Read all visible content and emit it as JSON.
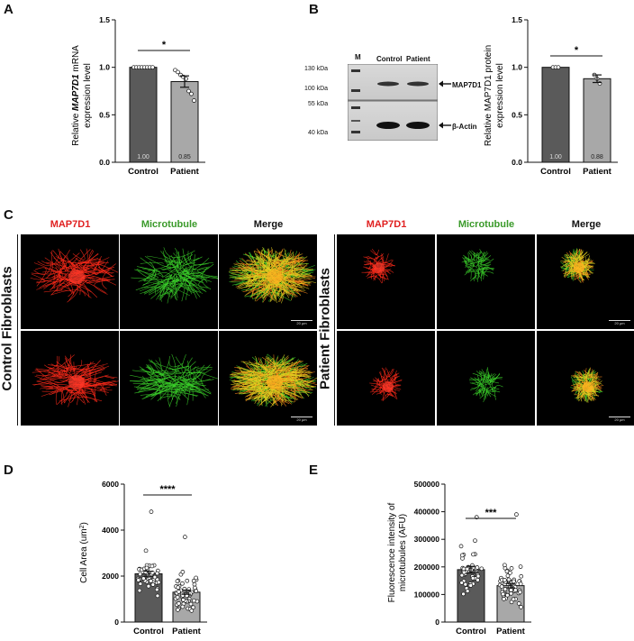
{
  "panels": {
    "A": "A",
    "B": "B",
    "C": "C",
    "D": "D",
    "E": "E"
  },
  "panelA": {
    "ylabel_pre": "Relative ",
    "ylabel_gene": "MAP7D1",
    "ylabel_post": " mRNA",
    "ylabel_line2": "expression level",
    "ticks": [
      "0.0",
      "0.5",
      "1.0",
      "1.5"
    ],
    "significance": "*",
    "chart_data": {
      "type": "bar",
      "categories": [
        "Control",
        "Patient"
      ],
      "values": [
        1.0,
        0.85
      ],
      "bar_labels": [
        "1.00",
        "0.85"
      ],
      "error": [
        0.0,
        0.06
      ],
      "ylim": [
        0,
        1.5
      ],
      "points": [
        [
          1.0,
          1.0,
          1.0,
          1.0,
          1.0,
          1.0,
          1.0,
          1.0
        ],
        [
          0.97,
          0.95,
          0.92,
          0.9,
          0.88,
          0.75,
          0.72,
          0.65
        ]
      ]
    }
  },
  "panelB_blot": {
    "lane_m": "M",
    "lane_control": "Control",
    "lane_patient": "Patient",
    "mw_130": "130 kDa",
    "mw_100": "100 kDa",
    "mw_55": "55 kDa",
    "mw_40": "40 kDa",
    "band_top": "MAP7D1",
    "band_bottom": "β-Actin"
  },
  "panelB": {
    "ylabel_line1": "Relative MAP7D1 protein",
    "ylabel_line2": "expression level",
    "ticks": [
      "0.0",
      "0.5",
      "1.0",
      "1.5"
    ],
    "significance": "*",
    "chart_data": {
      "type": "bar",
      "categories": [
        "Control",
        "Patient"
      ],
      "values": [
        1.0,
        0.88
      ],
      "bar_labels": [
        "1.00",
        "0.88"
      ],
      "error": [
        0.0,
        0.04
      ],
      "ylim": [
        0,
        1.5
      ],
      "points": [
        [
          1.0,
          1.0,
          1.0
        ],
        [
          0.92,
          0.88,
          0.83
        ]
      ]
    }
  },
  "panelC": {
    "col_titles": [
      "MAP7D1",
      "Microtubule",
      "Merge",
      "MAP7D1",
      "Microtubule",
      "Merge"
    ],
    "title_colors": [
      "#e02020",
      "#3a9a2a",
      "#111111",
      "#e02020",
      "#3a9a2a",
      "#111111"
    ],
    "side_left": "Control Fibroblasts",
    "side_right": "Patient Fibroblasts",
    "scale_text": "20 µm"
  },
  "panelD": {
    "ylabel_main": "Cell Area (um",
    "ylabel_sup": "2",
    "ylabel_end": ")",
    "ticks": [
      "0",
      "2000",
      "4000",
      "6000"
    ],
    "significance": "****",
    "chart_data": {
      "type": "bar",
      "categories": [
        "Control",
        "Patient"
      ],
      "values": [
        2100,
        1300
      ],
      "error": [
        110,
        90
      ],
      "ylim": [
        0,
        6000
      ]
    }
  },
  "panelE": {
    "ylabel_line1": "Fluorescence intensity of",
    "ylabel_line2": "microtubules (AFU)",
    "ticks": [
      "0",
      "100000",
      "200000",
      "300000",
      "400000",
      "500000"
    ],
    "significance": "***",
    "chart_data": {
      "type": "bar",
      "categories": [
        "Control",
        "Patient"
      ],
      "values": [
        190000,
        132000
      ],
      "error": [
        12000,
        8000
      ],
      "ylim": [
        0,
        500000
      ]
    }
  }
}
